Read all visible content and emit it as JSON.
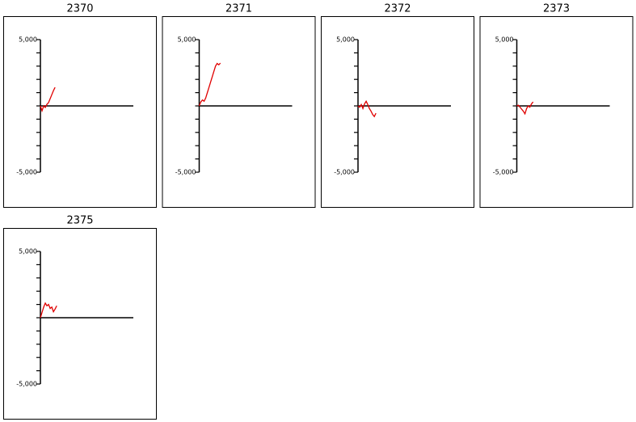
{
  "chart_data": [
    {
      "type": "line",
      "title": "2370",
      "color": "#e00000",
      "xlim": [
        0,
        57
      ],
      "ylim": [
        -5000,
        5000
      ],
      "yticks": [
        {
          "value": -5000,
          "label": "-5,000"
        },
        {
          "value": -4000,
          "label": null
        },
        {
          "value": -3000,
          "label": null
        },
        {
          "value": -2000,
          "label": null
        },
        {
          "value": -1000,
          "label": null
        },
        {
          "value": 0,
          "label": null
        },
        {
          "value": 1000,
          "label": null
        },
        {
          "value": 2000,
          "label": null
        },
        {
          "value": 3000,
          "label": null
        },
        {
          "value": 4000,
          "label": null
        },
        {
          "value": 5000,
          "label": "5,000"
        }
      ],
      "values": [
        0,
        -370,
        0,
        -120,
        120,
        250,
        550,
        850,
        1150,
        1400
      ]
    },
    {
      "type": "line",
      "title": "2371",
      "color": "#e00000",
      "xlim": [
        0,
        57
      ],
      "ylim": [
        -5000,
        5000
      ],
      "yticks": [
        {
          "value": -5000,
          "label": "-5,000"
        },
        {
          "value": -4000,
          "label": null
        },
        {
          "value": -3000,
          "label": null
        },
        {
          "value": -2000,
          "label": null
        },
        {
          "value": -1000,
          "label": null
        },
        {
          "value": 0,
          "label": null
        },
        {
          "value": 1000,
          "label": null
        },
        {
          "value": 2000,
          "label": null
        },
        {
          "value": 3000,
          "label": null
        },
        {
          "value": 4000,
          "label": null
        },
        {
          "value": 5000,
          "label": "5,000"
        }
      ],
      "values": [
        0,
        300,
        450,
        350,
        600,
        1000,
        1400,
        1800,
        2200,
        2600,
        3000,
        3200,
        3100,
        3230
      ]
    },
    {
      "type": "line",
      "title": "2372",
      "color": "#e00000",
      "xlim": [
        0,
        57
      ],
      "ylim": [
        -5000,
        5000
      ],
      "yticks": [
        {
          "value": -5000,
          "label": "-5,000"
        },
        {
          "value": -4000,
          "label": null
        },
        {
          "value": -3000,
          "label": null
        },
        {
          "value": -2000,
          "label": null
        },
        {
          "value": -1000,
          "label": null
        },
        {
          "value": 0,
          "label": null
        },
        {
          "value": 1000,
          "label": null
        },
        {
          "value": 2000,
          "label": null
        },
        {
          "value": 3000,
          "label": null
        },
        {
          "value": 4000,
          "label": null
        },
        {
          "value": 5000,
          "label": "5,000"
        }
      ],
      "values": [
        0,
        -100,
        100,
        -200,
        150,
        350,
        100,
        -200,
        -400,
        -650,
        -800,
        -550
      ]
    },
    {
      "type": "line",
      "title": "2373",
      "color": "#e00000",
      "xlim": [
        0,
        57
      ],
      "ylim": [
        -5000,
        5000
      ],
      "yticks": [
        {
          "value": -5000,
          "label": "-5,000"
        },
        {
          "value": -4000,
          "label": null
        },
        {
          "value": -3000,
          "label": null
        },
        {
          "value": -2000,
          "label": null
        },
        {
          "value": -1000,
          "label": null
        },
        {
          "value": 0,
          "label": null
        },
        {
          "value": 1000,
          "label": null
        },
        {
          "value": 2000,
          "label": null
        },
        {
          "value": 3000,
          "label": null
        },
        {
          "value": 4000,
          "label": null
        },
        {
          "value": 5000,
          "label": "5,000"
        }
      ],
      "values": [
        0,
        50,
        -100,
        -250,
        -400,
        -600,
        -200,
        0,
        -100,
        150,
        300
      ]
    },
    {
      "type": "line",
      "title": "2375",
      "color": "#e00000",
      "xlim": [
        0,
        57
      ],
      "ylim": [
        -5000,
        5000
      ],
      "yticks": [
        {
          "value": -5000,
          "label": "-5,000"
        },
        {
          "value": -4000,
          "label": null
        },
        {
          "value": -3000,
          "label": null
        },
        {
          "value": -2000,
          "label": null
        },
        {
          "value": -1000,
          "label": null
        },
        {
          "value": 0,
          "label": null
        },
        {
          "value": 1000,
          "label": null
        },
        {
          "value": 2000,
          "label": null
        },
        {
          "value": 3000,
          "label": null
        },
        {
          "value": 4000,
          "label": null
        },
        {
          "value": 5000,
          "label": "5,000"
        }
      ],
      "values": [
        0,
        400,
        800,
        1100,
        900,
        1000,
        700,
        800,
        450,
        650,
        900
      ]
    }
  ]
}
